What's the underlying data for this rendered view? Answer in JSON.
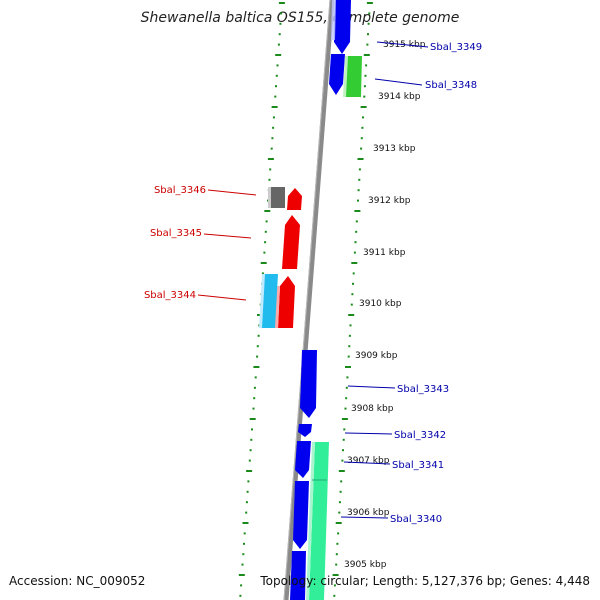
{
  "title": "Shewanella baltica OS155, complete genome",
  "footer": {
    "accession": "Accession: NC_009052",
    "topology": "Topology: circular; Length: 5,127,376 bp; Genes: 4,448"
  },
  "colors": {
    "background": "#ffffff",
    "backbone": "#8a8a8a",
    "tick": "#1a8a1a",
    "label_right": "#0000aa",
    "label_left": "#cc0000",
    "gene_blue": "#0000ee",
    "gene_red": "#ee0000",
    "gene_green": "#33cc33",
    "gene_teal": "#33ee99",
    "gene_cyan": "#22bbee",
    "gene_gray": "#666666"
  },
  "scale_labels": [
    "3915 kbp",
    "3914 kbp",
    "3913 kbp",
    "3912 kbp",
    "3911 kbp",
    "3910 kbp",
    "3909 kbp",
    "3908 kbp",
    "3907 kbp",
    "3906 kbp",
    "3905 kbp"
  ],
  "genes_right": [
    "Sbal_3349",
    "Sbal_3348",
    "Sbal_3343",
    "Sbal_3342",
    "Sbal_3341",
    "Sbal_3340"
  ],
  "genes_left": [
    "Sbal_3346",
    "Sbal_3345",
    "Sbal_3344"
  ]
}
